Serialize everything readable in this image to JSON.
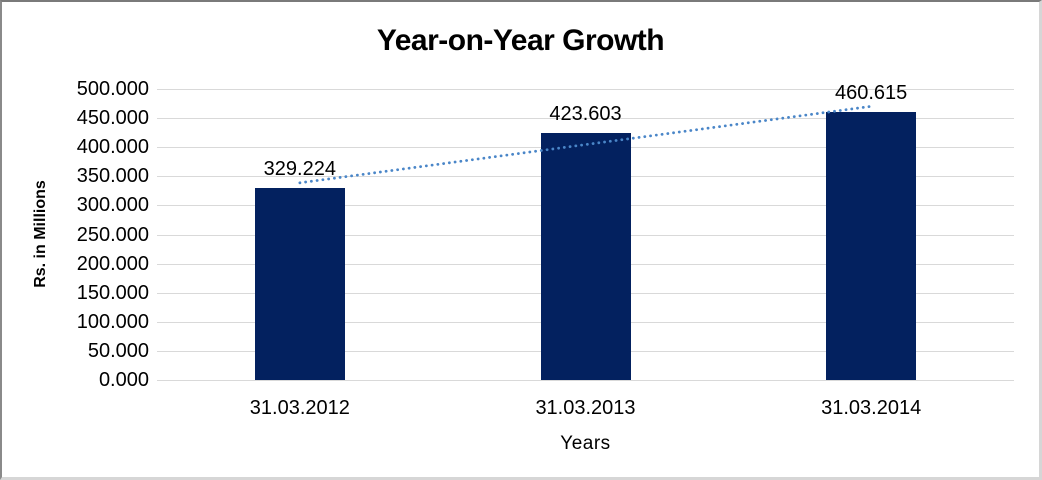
{
  "chart_data": {
    "type": "bar",
    "title": "Year-on-Year Growth",
    "xlabel": "Years",
    "ylabel": "Rs. in Millions",
    "categories": [
      "31.03.2012",
      "31.03.2013",
      "31.03.2014"
    ],
    "values": [
      329.224,
      423.603,
      460.615
    ],
    "data_labels": [
      "329.224",
      "423.603",
      "460.615"
    ],
    "ylim": [
      0,
      500
    ],
    "ytick_step": 50,
    "ytick_labels": [
      "0.000",
      "50.000",
      "100.000",
      "150.000",
      "200.000",
      "250.000",
      "300.000",
      "350.000",
      "400.000",
      "450.000",
      "500.000"
    ],
    "grid": "horizontal",
    "legend": "none",
    "bar_color": "#03215f",
    "gridline_color": "#d9d9d9",
    "text_color": "#000000",
    "trendline": {
      "type": "linear",
      "style": "dotted",
      "color": "#4a86c8"
    }
  }
}
